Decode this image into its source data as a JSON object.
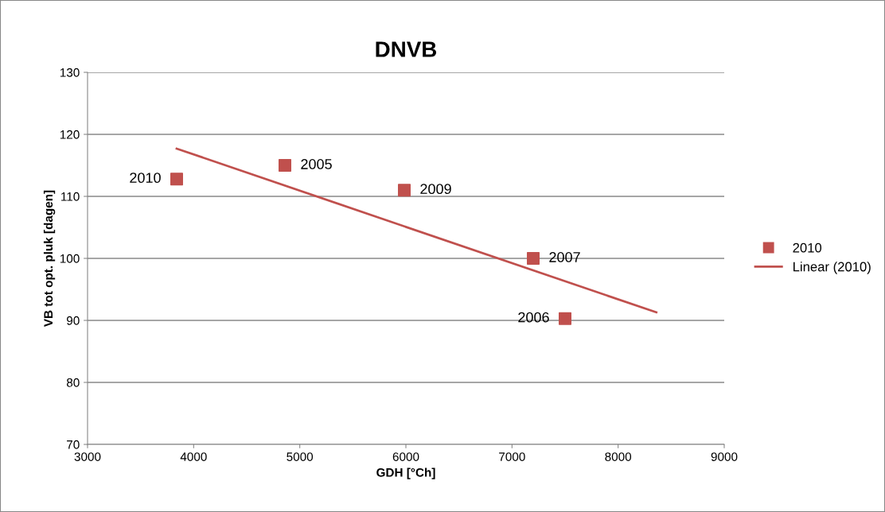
{
  "chart_data": {
    "type": "scatter",
    "title": "DNVB",
    "xlabel": "GDH [°Ch]",
    "ylabel": "VB tot opt. pluk [dagen]",
    "x": [
      3840,
      4860,
      5985,
      7200,
      7500
    ],
    "series": [
      {
        "name": "2010",
        "color": "#c0504d",
        "values": [
          112.8,
          115.0,
          111.0,
          100.0,
          90.3
        ],
        "marker": "square"
      },
      {
        "name": "Linear (2010)",
        "type": "line",
        "color": "#c0504d",
        "x": [
          3840,
          8360
        ],
        "values": [
          117.7,
          91.3
        ],
        "marker": "none"
      }
    ],
    "annotations": [
      {
        "text": "2010",
        "x": 3840,
        "y": 112.8
      },
      {
        "text": "2005",
        "x": 4860,
        "y": 115.0
      },
      {
        "text": "2009",
        "x": 5985,
        "y": 111.0
      },
      {
        "text": "2007",
        "x": 7200,
        "y": 100.0
      },
      {
        "text": "2006",
        "x": 7500,
        "y": 90.3
      }
    ],
    "xlim": [
      3000,
      9000
    ],
    "xticks": [
      3000,
      4000,
      5000,
      6000,
      7000,
      8000,
      9000
    ],
    "ylim": [
      70,
      130
    ],
    "yticks": [
      70,
      80,
      90,
      100,
      110,
      120,
      130
    ],
    "grid": "y",
    "legend": "right"
  }
}
